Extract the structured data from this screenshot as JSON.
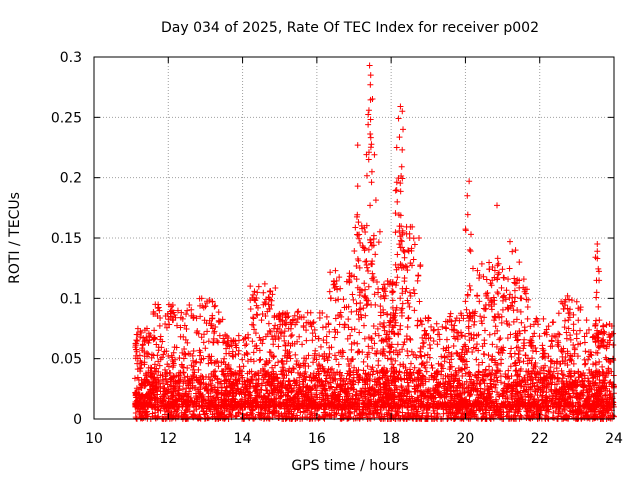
{
  "chart_data": {
    "type": "scatter",
    "title": "Day 034 of 2025, Rate Of TEC Index for receiver p002",
    "xlabel": "GPS time / hours",
    "ylabel": "ROTI / TECUs",
    "xlim": [
      10,
      24
    ],
    "ylim": [
      0,
      0.3
    ],
    "x_ticks": [
      10,
      12,
      14,
      16,
      18,
      20,
      22,
      24
    ],
    "x_tick_labels": [
      "10",
      "12",
      "14",
      "16",
      "18",
      "20",
      "22",
      "24"
    ],
    "y_ticks": [
      0,
      0.05,
      0.1,
      0.15,
      0.2,
      0.25,
      0.3
    ],
    "y_tick_labels": [
      "0",
      "0.05",
      "0.1",
      "0.15",
      "0.2",
      "0.25",
      "0.3"
    ],
    "grid": true,
    "marker": "+",
    "marker_color": "#ff0000",
    "data_start_hour": 11.1,
    "data_end_hour": 24,
    "baseline_range": [
      0,
      0.04
    ],
    "notable_points": [
      {
        "x": 17.42,
        "y": 0.293
      },
      {
        "x": 17.45,
        "y": 0.285
      },
      {
        "x": 17.44,
        "y": 0.277
      },
      {
        "x": 18.25,
        "y": 0.259
      },
      {
        "x": 18.3,
        "y": 0.255
      },
      {
        "x": 18.2,
        "y": 0.249
      },
      {
        "x": 17.38,
        "y": 0.244
      },
      {
        "x": 18.32,
        "y": 0.24
      },
      {
        "x": 17.1,
        "y": 0.227
      },
      {
        "x": 18.15,
        "y": 0.225
      },
      {
        "x": 17.55,
        "y": 0.219
      },
      {
        "x": 17.1,
        "y": 0.193
      },
      {
        "x": 20.1,
        "y": 0.197
      },
      {
        "x": 20.05,
        "y": 0.185
      },
      {
        "x": 20.85,
        "y": 0.177
      },
      {
        "x": 17.3,
        "y": 0.155
      },
      {
        "x": 20.15,
        "y": 0.153
      },
      {
        "x": 18.5,
        "y": 0.15
      },
      {
        "x": 23.55,
        "y": 0.145
      },
      {
        "x": 23.55,
        "y": 0.139
      },
      {
        "x": 23.55,
        "y": 0.133
      },
      {
        "x": 21.2,
        "y": 0.147
      },
      {
        "x": 21.35,
        "y": 0.14
      },
      {
        "x": 21.45,
        "y": 0.13
      },
      {
        "x": 16.5,
        "y": 0.123
      },
      {
        "x": 14.6,
        "y": 0.112
      },
      {
        "x": 14.75,
        "y": 0.106
      },
      {
        "x": 12.9,
        "y": 0.1
      },
      {
        "x": 11.65,
        "y": 0.095
      },
      {
        "x": 12.1,
        "y": 0.09
      },
      {
        "x": 22.75,
        "y": 0.102
      },
      {
        "x": 22.1,
        "y": 0.083
      },
      {
        "x": 23.8,
        "y": 0.078
      },
      {
        "x": 11.15,
        "y": 0.07
      },
      {
        "x": 13.2,
        "y": 0.075
      },
      {
        "x": 15.2,
        "y": 0.088
      }
    ],
    "bursts": [
      {
        "x0": 11.1,
        "x1": 11.7,
        "peak": 0.075
      },
      {
        "x0": 11.7,
        "x1": 12.5,
        "peak": 0.095
      },
      {
        "x0": 12.5,
        "x1": 13.5,
        "peak": 0.1
      },
      {
        "x0": 13.5,
        "x1": 14.2,
        "peak": 0.07
      },
      {
        "x0": 14.2,
        "x1": 14.9,
        "peak": 0.112
      },
      {
        "x0": 14.9,
        "x1": 15.6,
        "peak": 0.09
      },
      {
        "x0": 15.6,
        "x1": 16.3,
        "peak": 0.09
      },
      {
        "x0": 16.3,
        "x1": 17.0,
        "peak": 0.123
      },
      {
        "x0": 17.0,
        "x1": 17.7,
        "peak": 0.16
      },
      {
        "x0": 17.7,
        "x1": 18.1,
        "peak": 0.115
      },
      {
        "x0": 18.1,
        "x1": 18.8,
        "peak": 0.16
      },
      {
        "x0": 18.8,
        "x1": 19.6,
        "peak": 0.085
      },
      {
        "x0": 19.6,
        "x1": 20.3,
        "peak": 0.09
      },
      {
        "x0": 20.3,
        "x1": 21.0,
        "peak": 0.13
      },
      {
        "x0": 21.0,
        "x1": 21.7,
        "peak": 0.12
      },
      {
        "x0": 21.7,
        "x1": 22.5,
        "peak": 0.085
      },
      {
        "x0": 22.5,
        "x1": 23.3,
        "peak": 0.1
      },
      {
        "x0": 23.3,
        "x1": 24.0,
        "peak": 0.08
      }
    ]
  }
}
